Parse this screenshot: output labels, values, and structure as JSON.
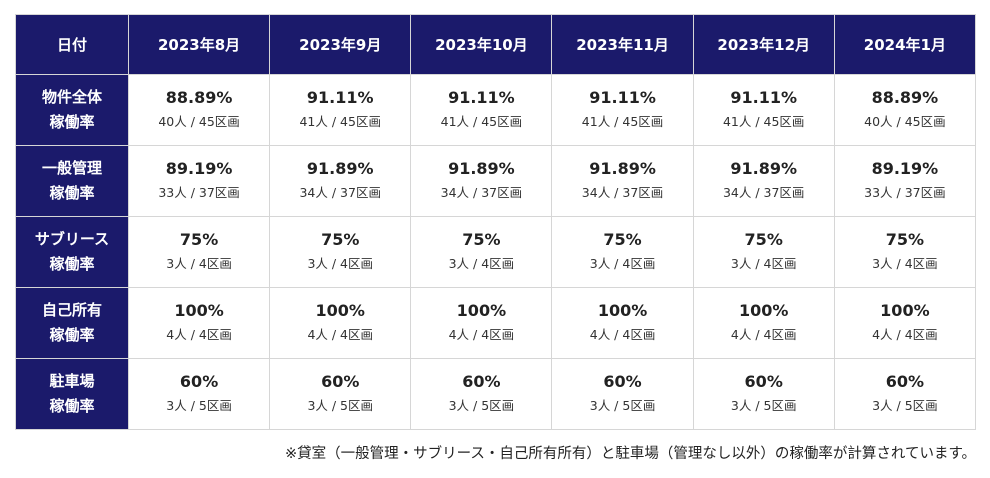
{
  "header": {
    "date_label": "日付",
    "months": [
      "2023年8月",
      "2023年9月",
      "2023年10月",
      "2023年11月",
      "2023年12月",
      "2024年1月"
    ]
  },
  "rows": [
    {
      "label_line1": "物件全体",
      "label_line2": "稼働率",
      "cells": [
        {
          "pct": "88.89%",
          "count": "40人 / 45区画"
        },
        {
          "pct": "91.11%",
          "count": "41人 / 45区画"
        },
        {
          "pct": "91.11%",
          "count": "41人 / 45区画"
        },
        {
          "pct": "91.11%",
          "count": "41人 / 45区画"
        },
        {
          "pct": "91.11%",
          "count": "41人 / 45区画"
        },
        {
          "pct": "88.89%",
          "count": "40人 / 45区画"
        }
      ]
    },
    {
      "label_line1": "一般管理",
      "label_line2": "稼働率",
      "cells": [
        {
          "pct": "89.19%",
          "count": "33人 / 37区画"
        },
        {
          "pct": "91.89%",
          "count": "34人 / 37区画"
        },
        {
          "pct": "91.89%",
          "count": "34人 / 37区画"
        },
        {
          "pct": "91.89%",
          "count": "34人 / 37区画"
        },
        {
          "pct": "91.89%",
          "count": "34人 / 37区画"
        },
        {
          "pct": "89.19%",
          "count": "33人 / 37区画"
        }
      ]
    },
    {
      "label_line1": "サブリース",
      "label_line2": "稼働率",
      "cells": [
        {
          "pct": "75%",
          "count": "3人 / 4区画"
        },
        {
          "pct": "75%",
          "count": "3人 / 4区画"
        },
        {
          "pct": "75%",
          "count": "3人 / 4区画"
        },
        {
          "pct": "75%",
          "count": "3人 / 4区画"
        },
        {
          "pct": "75%",
          "count": "3人 / 4区画"
        },
        {
          "pct": "75%",
          "count": "3人 / 4区画"
        }
      ]
    },
    {
      "label_line1": "自己所有",
      "label_line2": "稼働率",
      "cells": [
        {
          "pct": "100%",
          "count": "4人 / 4区画"
        },
        {
          "pct": "100%",
          "count": "4人 / 4区画"
        },
        {
          "pct": "100%",
          "count": "4人 / 4区画"
        },
        {
          "pct": "100%",
          "count": "4人 / 4区画"
        },
        {
          "pct": "100%",
          "count": "4人 / 4区画"
        },
        {
          "pct": "100%",
          "count": "4人 / 4区画"
        }
      ]
    },
    {
      "label_line1": "駐車場",
      "label_line2": "稼働率",
      "cells": [
        {
          "pct": "60%",
          "count": "3人 / 5区画"
        },
        {
          "pct": "60%",
          "count": "3人 / 5区画"
        },
        {
          "pct": "60%",
          "count": "3人 / 5区画"
        },
        {
          "pct": "60%",
          "count": "3人 / 5区画"
        },
        {
          "pct": "60%",
          "count": "3人 / 5区画"
        },
        {
          "pct": "60%",
          "count": "3人 / 5区画"
        }
      ]
    }
  ],
  "note": "※貸室（一般管理・サブリース・自己所有所有）と駐車場（管理なし以外）の稼働率が計算されています。",
  "colors": {
    "header_bg": "#1b1a6b",
    "header_text": "#ffffff",
    "border": "#d6d6d6"
  }
}
